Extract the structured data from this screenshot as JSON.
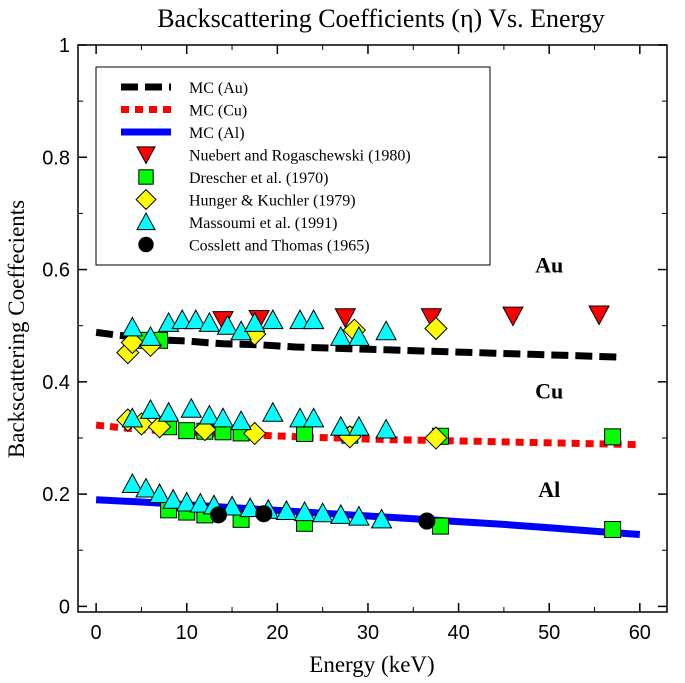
{
  "chart_data": {
    "type": "scatter",
    "title": "Backscattering Coefficients (η) Vs. Energy",
    "xlabel": "Energy (keV)",
    "ylabel": "Backscattering Coeffecients",
    "xlim": [
      -2,
      63
    ],
    "ylim": [
      -0.01,
      1.0
    ],
    "xticks": [
      0,
      10,
      20,
      30,
      40,
      50,
      60
    ],
    "yticks": [
      0,
      0.2,
      0.4,
      0.6,
      0.8,
      1
    ],
    "ytick_labels": [
      "0",
      "0.2",
      "0.4",
      "0.6",
      "0.8",
      "1"
    ],
    "grid": false,
    "legend_position": "top-left",
    "annotations": [
      {
        "text": "Au",
        "x": 50,
        "y": 0.595
      },
      {
        "text": "Cu",
        "x": 50,
        "y": 0.37
      },
      {
        "text": "Al",
        "x": 50,
        "y": 0.195
      }
    ],
    "lines": [
      {
        "name": "MC (Au)",
        "color": "#000000",
        "style": "dashed",
        "x": [
          0,
          2,
          4,
          6,
          8,
          10,
          12,
          14,
          16,
          18,
          20,
          22,
          24,
          26,
          28,
          30,
          32,
          34,
          36,
          38,
          40,
          42,
          44,
          46,
          48,
          50,
          52,
          54,
          56,
          58
        ],
        "y": [
          0.488,
          0.484,
          0.48,
          0.477,
          0.474,
          0.473,
          0.47,
          0.468,
          0.467,
          0.466,
          0.464,
          0.462,
          0.461,
          0.46,
          0.459,
          0.458,
          0.457,
          0.456,
          0.455,
          0.454,
          0.453,
          0.452,
          0.451,
          0.45,
          0.449,
          0.448,
          0.447,
          0.446,
          0.445,
          0.444
        ]
      },
      {
        "name": "MC (Cu)",
        "color": "#ff0000",
        "style": "dotted",
        "x": [
          0,
          3,
          6,
          9,
          12,
          15,
          18,
          21,
          24,
          27,
          30,
          33,
          36,
          39,
          42,
          45,
          48,
          51,
          54,
          57,
          60
        ],
        "y": [
          0.323,
          0.318,
          0.314,
          0.311,
          0.309,
          0.307,
          0.305,
          0.303,
          0.301,
          0.3,
          0.298,
          0.297,
          0.296,
          0.295,
          0.294,
          0.293,
          0.292,
          0.291,
          0.29,
          0.289,
          0.288
        ]
      },
      {
        "name": "MC (Al)",
        "color": "#0000ff",
        "style": "solid",
        "x": [
          0,
          5,
          10,
          15,
          20,
          25,
          30,
          35,
          40,
          45,
          50,
          55,
          60
        ],
        "y": [
          0.19,
          0.186,
          0.181,
          0.176,
          0.171,
          0.166,
          0.161,
          0.156,
          0.151,
          0.146,
          0.14,
          0.134,
          0.128
        ]
      }
    ],
    "series": [
      {
        "name": "Nuebert and Rogaschewski (1980)",
        "marker": "triangle-down",
        "color": "#ff0000",
        "x": [
          14,
          18,
          27.5,
          37,
          46,
          55.5
        ],
        "y": [
          0.51,
          0.512,
          0.515,
          0.515,
          0.518,
          0.52
        ]
      },
      {
        "name": "Drescher et al. (1970)",
        "marker": "square",
        "color": "#00ff00",
        "x": [
          5,
          7,
          8,
          10,
          12,
          14,
          16,
          23,
          28,
          38,
          57,
          8,
          10,
          12,
          16,
          23,
          38,
          57
        ],
        "y": [
          0.474,
          0.474,
          0.32,
          0.313,
          0.312,
          0.311,
          0.309,
          0.308,
          0.305,
          0.303,
          0.302,
          0.172,
          0.168,
          0.163,
          0.155,
          0.148,
          0.143,
          0.137
        ]
      },
      {
        "name": "Hunger & Kuchler (1979)",
        "marker": "diamond",
        "color": "#ffff00",
        "x": [
          3.5,
          4,
          6,
          17.5,
          28.5,
          37.5,
          3.5,
          5,
          7,
          12,
          17.5,
          28,
          37.5
        ],
        "y": [
          0.452,
          0.47,
          0.465,
          0.485,
          0.492,
          0.495,
          0.332,
          0.325,
          0.32,
          0.315,
          0.308,
          0.302,
          0.3
        ]
      },
      {
        "name": "Massoumi et al. (1991)",
        "marker": "triangle-up",
        "color": "#00ffff",
        "x": [
          4,
          6,
          8,
          9.5,
          11,
          12.5,
          14.5,
          16,
          17.5,
          19.5,
          22.5,
          24,
          27,
          29,
          32,
          4,
          6,
          8,
          10.5,
          12.5,
          14,
          16,
          19.5,
          22.5,
          24,
          27,
          29,
          32,
          4,
          5.5,
          7,
          8.5,
          10,
          11.5,
          13,
          15,
          17,
          19,
          21,
          23,
          25,
          27,
          29,
          31.5
        ],
        "y": [
          0.497,
          0.48,
          0.505,
          0.51,
          0.51,
          0.505,
          0.5,
          0.49,
          0.505,
          0.51,
          0.51,
          0.51,
          0.48,
          0.48,
          0.49,
          0.335,
          0.35,
          0.345,
          0.352,
          0.34,
          0.335,
          0.33,
          0.345,
          0.335,
          0.335,
          0.32,
          0.32,
          0.315,
          0.218,
          0.21,
          0.2,
          0.19,
          0.185,
          0.183,
          0.18,
          0.178,
          0.175,
          0.172,
          0.17,
          0.168,
          0.166,
          0.163,
          0.16,
          0.155
        ]
      },
      {
        "name": "Cosslett and Thomas (1965)",
        "marker": "circle",
        "color": "#000000",
        "x": [
          13.5,
          18.5,
          36.5
        ],
        "y": [
          0.163,
          0.165,
          0.152
        ]
      }
    ]
  }
}
